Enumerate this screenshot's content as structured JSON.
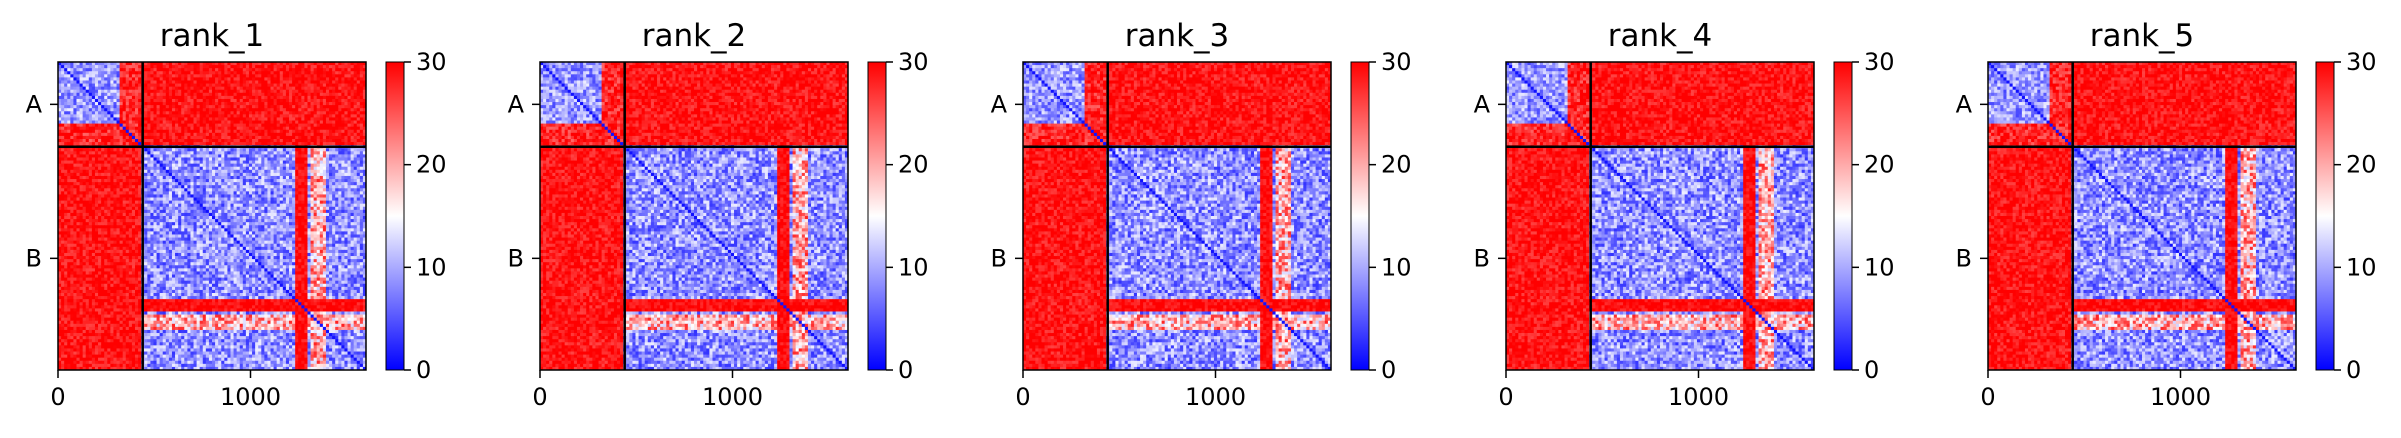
{
  "chart_data": {
    "type": "heatmap",
    "description_note": "",
    "panels": [
      {
        "title": "rank_1",
        "seed": 11
      },
      {
        "title": "rank_2",
        "seed": 23
      },
      {
        "title": "rank_3",
        "seed": 37
      },
      {
        "title": "rank_4",
        "seed": 41
      },
      {
        "title": "rank_5",
        "seed": 53
      }
    ],
    "chains": [
      {
        "label": "A",
        "start": 0,
        "end": 440
      },
      {
        "label": "B",
        "start": 440,
        "end": 1600
      }
    ],
    "total_length": 1600,
    "x_ticks": [
      {
        "value": 0,
        "label": "0"
      },
      {
        "value": 1000,
        "label": "1000"
      }
    ],
    "colorbar": {
      "min": 0,
      "max": 30,
      "ticks": [
        {
          "value": 0,
          "label": "0"
        },
        {
          "value": 10,
          "label": "10"
        },
        {
          "value": 20,
          "label": "20"
        },
        {
          "value": 30,
          "label": "30"
        }
      ],
      "colormap": [
        "#0000ff",
        "#ffffff",
        "#ff0000"
      ]
    },
    "intra_chain_regions": {
      "A_high_block": [
        320,
        440
      ],
      "B_high_band_1": [
        1230,
        1290
      ],
      "B_high_band_2": [
        1320,
        1400
      ]
    }
  }
}
